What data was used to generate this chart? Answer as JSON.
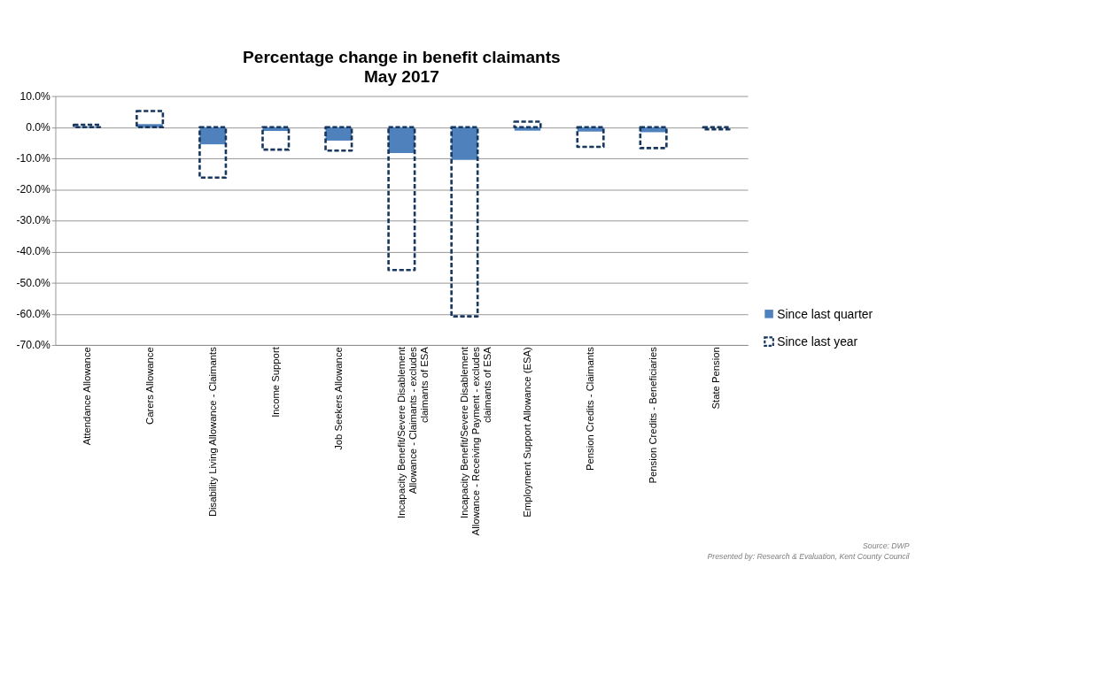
{
  "chart_data": {
    "type": "bar",
    "title": "Percentage change in benefit claimants",
    "subtitle": "May 2017",
    "categories": [
      "Attendance Allowance",
      "Carers Allowance",
      "Disability Living Allowance - Claimants",
      "Income Support",
      "Job Seekers Allowance",
      "Incapacity Benefit/Severe Disablement Allowance - Claimants - excludes claimants of ESA",
      "Incapacity Benefit/Severe Disablement Allowance - Receiving Payment - excludes claimants of ESA",
      "Employment Support Allowance (ESA)",
      "Pension Credits - Claimants",
      "Pension Credits - Beneficiaries",
      "State Pension"
    ],
    "series": [
      {
        "name": "Since last quarter",
        "color": "#4f81bd",
        "values": [
          0.2,
          1.0,
          -5.5,
          -1.2,
          -4.3,
          -8.3,
          -10.5,
          -1.1,
          -1.4,
          -1.6,
          null
        ]
      },
      {
        "name": "Since last year",
        "color": "#17375e",
        "line_style": "dashed",
        "values": [
          0.8,
          5.2,
          -16.2,
          -7.2,
          -7.5,
          -45.9,
          -60.8,
          1.8,
          -6.3,
          -6.7,
          -0.7
        ]
      }
    ],
    "ylim": [
      -70,
      10
    ],
    "yticks": [
      {
        "value": 10,
        "label": "10.0%"
      },
      {
        "value": 0,
        "label": "0.0%"
      },
      {
        "value": -10,
        "label": "-10.0%"
      },
      {
        "value": -20,
        "label": "-20.0%"
      },
      {
        "value": -30,
        "label": "-30.0%"
      },
      {
        "value": -40,
        "label": "-40.0%"
      },
      {
        "value": -50,
        "label": "-50.0%"
      },
      {
        "value": -60,
        "label": "-60.0%"
      },
      {
        "value": -70,
        "label": "-70.0%"
      }
    ],
    "grid": "y",
    "legend": "right",
    "annotations": [
      "Source: DWP",
      "Presented by: Research & Evaluation, Kent County Council"
    ]
  }
}
